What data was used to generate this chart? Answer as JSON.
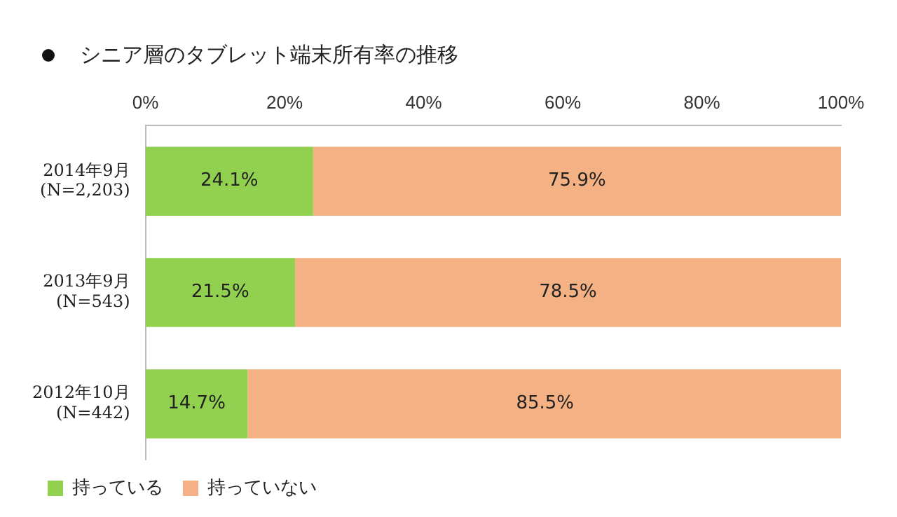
{
  "chart_data": {
    "type": "bar",
    "orientation": "horizontal",
    "stacked": true,
    "title": "シニア層のタブレット端末所有率の推移",
    "categories": [
      "2014年9月\n(N=2,203)",
      "2013年9月\n(N=543)",
      "2012年10月\n(N=442)"
    ],
    "series": [
      {
        "name": "持っている",
        "color": "#92d050",
        "values": [
          24.1,
          21.5,
          14.7
        ],
        "value_labels": [
          "24.1%",
          "21.5%",
          "14.7%"
        ]
      },
      {
        "name": "持っていない",
        "color": "#f4b183",
        "values": [
          75.9,
          78.5,
          85.5
        ],
        "value_labels": [
          "75.9%",
          "78.5%",
          "85.5%"
        ]
      }
    ],
    "xlim": [
      0,
      100
    ],
    "xticks": [
      {
        "value": 0,
        "label": "0%"
      },
      {
        "value": 20,
        "label": "20%"
      },
      {
        "value": 40,
        "label": "40%"
      },
      {
        "value": 60,
        "label": "60%"
      },
      {
        "value": 80,
        "label": "80%"
      },
      {
        "value": 100,
        "label": "100%"
      }
    ],
    "grid": false,
    "legend": "bottom left"
  }
}
